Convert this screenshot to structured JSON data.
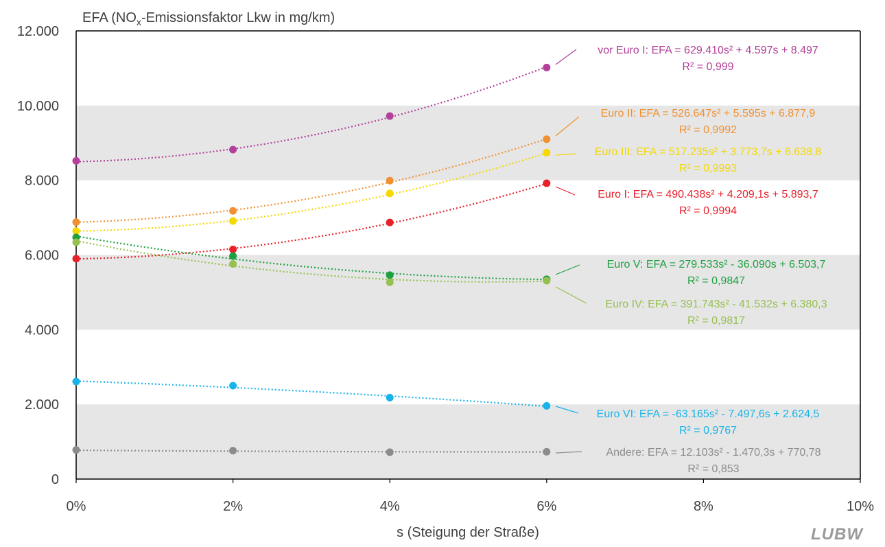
{
  "chart_data": {
    "type": "scatter",
    "title": "EFA (NOx-Emissionsfaktor Lkw in mg/km)",
    "title_parts": {
      "pre": "EFA (NO",
      "sub": "x",
      "post": "-Emissionsfaktor Lkw in mg/km)"
    },
    "xlabel": "s (Steigung der Straße)",
    "ylabel": "",
    "xlim": [
      0,
      0.1
    ],
    "ylim": [
      0,
      12000
    ],
    "x_ticks": [
      0,
      0.02,
      0.04,
      0.06,
      0.08,
      0.1
    ],
    "x_tick_labels": [
      "0%",
      "2%",
      "4%",
      "6%",
      "8%",
      "10%"
    ],
    "y_ticks": [
      0,
      2000,
      4000,
      6000,
      8000,
      10000,
      12000
    ],
    "y_tick_labels": [
      "0",
      "2.000",
      "4.000",
      "6.000",
      "8.000",
      "10.000",
      "12.000"
    ],
    "grid": "alternating horizontal bands",
    "band_color": "#e6e6e6",
    "series": [
      {
        "name": "vor Euro I",
        "color": "#b3409a",
        "x": [
          0,
          0.02,
          0.04,
          0.06
        ],
        "y": [
          8520,
          8820,
          9720,
          11020
        ],
        "trend": [
          629410,
          4597,
          8497
        ],
        "eq": "vor Euro I: EFA = 629.410s² + 4.597s + 8.497",
        "r2": "R² = 0,999"
      },
      {
        "name": "Euro II",
        "color": "#f09030",
        "x": [
          0,
          0.02,
          0.04,
          0.06
        ],
        "y": [
          6880,
          7180,
          7990,
          9100
        ],
        "trend": [
          526647,
          5595,
          6877.9
        ],
        "eq": "Euro II: EFA = 526.647s² + 5.595s + 6.877,9",
        "r2": "R² = 0,9992"
      },
      {
        "name": "Euro III",
        "color": "#f5d800",
        "x": [
          0,
          0.02,
          0.04,
          0.06
        ],
        "y": [
          6640,
          6910,
          7650,
          8740
        ],
        "trend": [
          517235,
          3773.7,
          6638.8
        ],
        "eq": "Euro III: EFA = 517.235s² + 3.773,7s + 6.638,8",
        "r2": "R² = 0,9993"
      },
      {
        "name": "Euro I",
        "color": "#e8202a",
        "x": [
          0,
          0.02,
          0.04,
          0.06
        ],
        "y": [
          5900,
          6150,
          6870,
          7920
        ],
        "trend": [
          490438,
          4209.1,
          5893.7
        ],
        "eq": "Euro I: EFA = 490.438s² + 4.209,1s + 5.893,7",
        "r2": "R² = 0,9994"
      },
      {
        "name": "Euro V",
        "color": "#1ca040",
        "x": [
          0,
          0.02,
          0.04,
          0.06
        ],
        "y": [
          6470,
          5970,
          5460,
          5350
        ],
        "trend": [
          279533,
          -36090,
          6503.7
        ],
        "eq": "Euro V: EFA = 279.533s² - 36.090s + 6.503,7",
        "r2": "R² = 0,9847"
      },
      {
        "name": "Euro IV",
        "color": "#96c050",
        "x": [
          0,
          0.02,
          0.04,
          0.06
        ],
        "y": [
          6340,
          5760,
          5270,
          5310
        ],
        "trend": [
          391743,
          -41532,
          6380.3
        ],
        "eq": "Euro IV: EFA = 391.743s² - 41.532s + 6.380,3",
        "r2": "R² = 0,9817"
      },
      {
        "name": "Euro VI",
        "color": "#18b4e8",
        "x": [
          0,
          0.02,
          0.04,
          0.06
        ],
        "y": [
          2610,
          2500,
          2180,
          1960
        ],
        "trend": [
          -63165,
          -7497.6,
          2624.5
        ],
        "eq": "Euro VI: EFA = -63.165s² - 7.497,6s + 2.624,5",
        "r2": "R² = 0,9767"
      },
      {
        "name": "Andere",
        "color": "#8c8c8c",
        "x": [
          0,
          0.02,
          0.04,
          0.06
        ],
        "y": [
          780,
          760,
          720,
          730
        ],
        "trend": [
          12103,
          -1470.3,
          770.78
        ],
        "eq": "Andere: EFA = 12.103s² - 1.470,3s + 770,78",
        "r2": "R² = 0,853"
      }
    ]
  },
  "logo_text": "LUBW"
}
